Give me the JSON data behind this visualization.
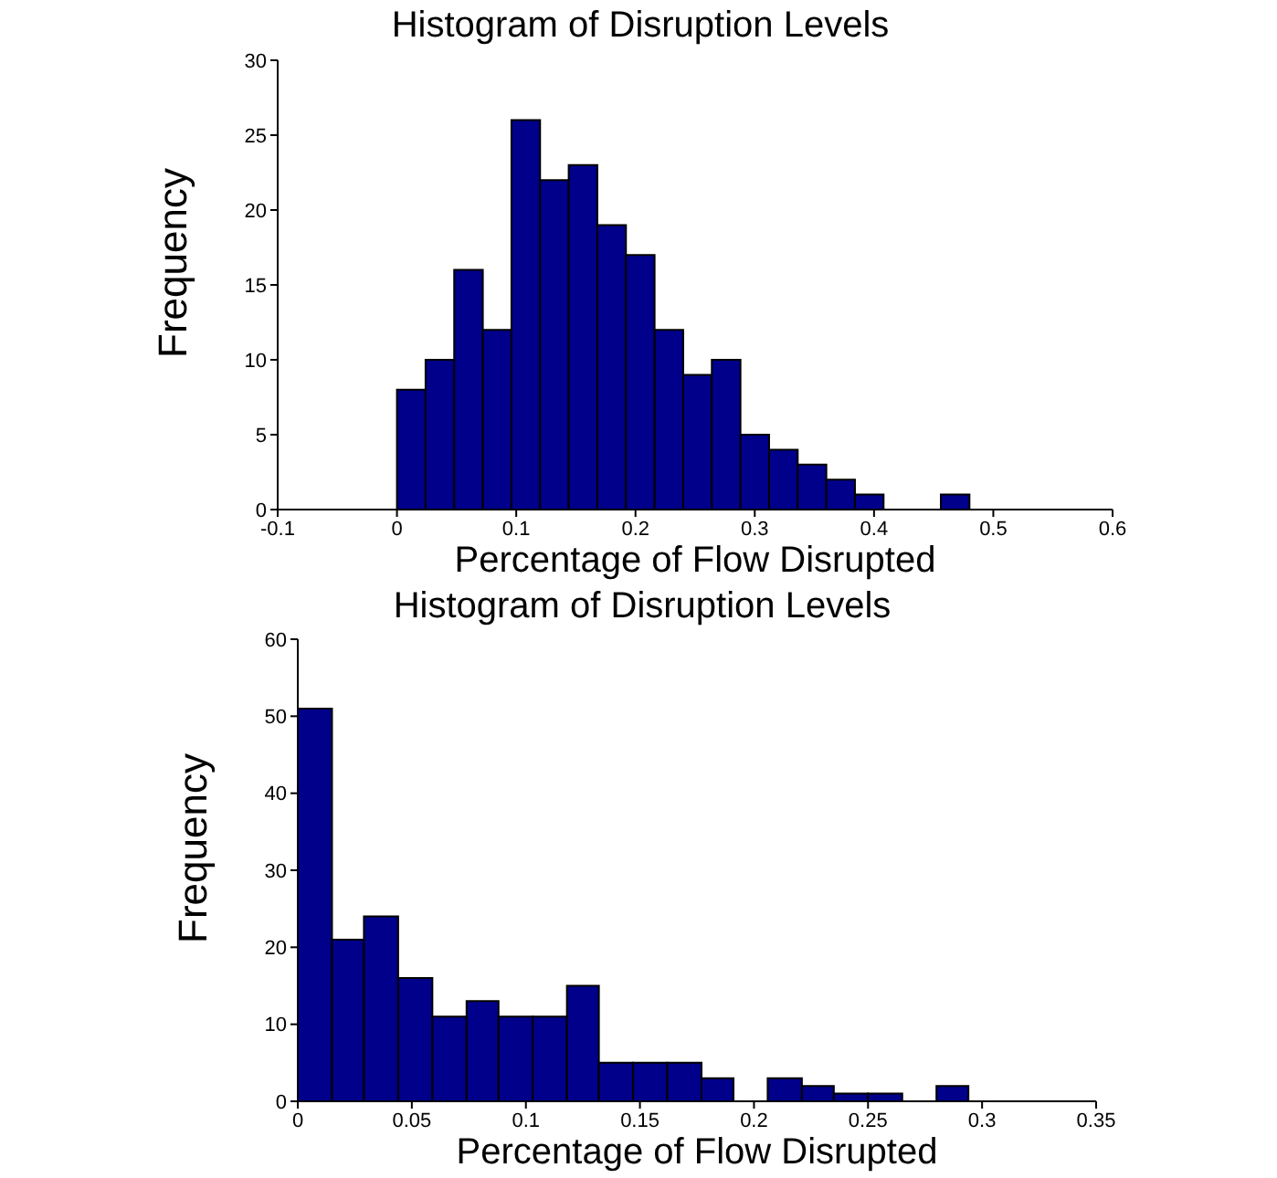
{
  "chart_data": [
    {
      "type": "histogram",
      "title": "Histogram of Disruption Levels",
      "xlabel": "Percentage of Flow Disrupted",
      "ylabel": "Frequency",
      "color": "#00008b",
      "bins": [
        0,
        0.024,
        0.048,
        0.072,
        0.096,
        0.12,
        0.144,
        0.168,
        0.192,
        0.216,
        0.24,
        0.264,
        0.288,
        0.312,
        0.336,
        0.36,
        0.384,
        0.408,
        0.432,
        0.456,
        0.48
      ],
      "values": [
        8,
        10,
        16,
        12,
        26,
        22,
        23,
        19,
        17,
        12,
        9,
        10,
        5,
        4,
        3,
        2,
        1,
        0,
        0,
        1
      ],
      "xlim": [
        -0.1,
        0.6
      ],
      "xticks": [
        -0.1,
        0,
        0.1,
        0.2,
        0.3,
        0.4,
        0.5,
        0.6
      ],
      "ylim": [
        0,
        30
      ],
      "yticks": [
        0,
        5,
        10,
        15,
        20,
        25,
        30
      ]
    },
    {
      "type": "histogram",
      "title": "Histogram of Disruption Levels",
      "xlabel": "Percentage of Flow Disrupted",
      "ylabel": "Frequency",
      "color": "#00008b",
      "bins": [
        0,
        0.015,
        0.029,
        0.044,
        0.059,
        0.074,
        0.088,
        0.103,
        0.118,
        0.132,
        0.147,
        0.162,
        0.177,
        0.191,
        0.206,
        0.221,
        0.235,
        0.25,
        0.265,
        0.28,
        0.294
      ],
      "values": [
        51,
        21,
        24,
        16,
        11,
        13,
        11,
        11,
        15,
        5,
        5,
        5,
        3,
        0,
        3,
        2,
        1,
        1,
        0,
        2
      ],
      "xlim": [
        0,
        0.35
      ],
      "xticks": [
        0,
        0.05,
        0.1,
        0.15,
        0.2,
        0.25,
        0.3,
        0.35
      ],
      "ylim": [
        0,
        60
      ],
      "yticks": [
        0,
        10,
        20,
        30,
        40,
        50,
        60
      ]
    }
  ]
}
